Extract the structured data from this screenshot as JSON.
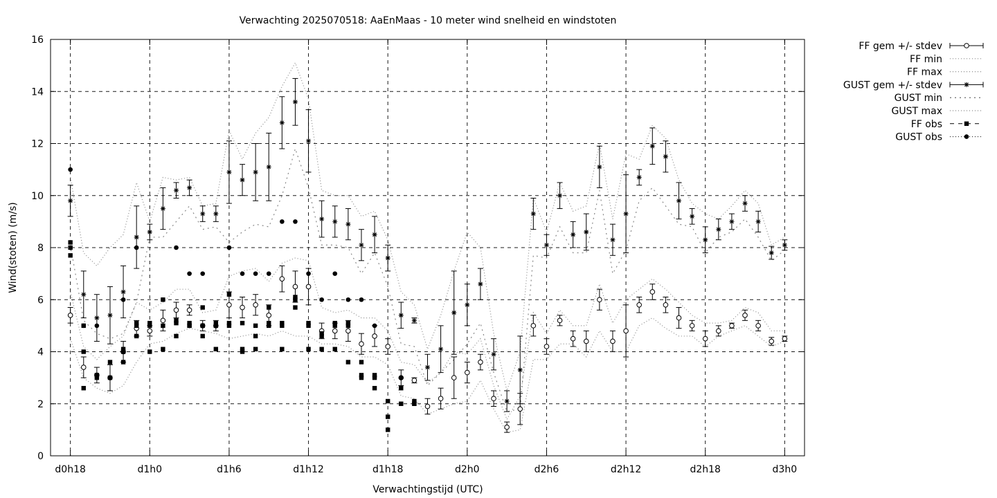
{
  "chart_data": {
    "type": "line",
    "title": "Verwachting 2025070518: AaEnMaas - 10 meter wind snelheid en windstoten",
    "xlabel": "Verwachtingstijd (UTC)",
    "ylabel": "Wind(stoten) (m/s)",
    "ylim": [
      0,
      16
    ],
    "yticks": [
      "0",
      "2",
      "4",
      "6",
      "8",
      "10",
      "12",
      "14",
      "16"
    ],
    "xlim_hours": [
      -1.5,
      55.5
    ],
    "x_unit": "hours since d0h18",
    "xticks": [
      {
        "h": 0,
        "label": "d0h18"
      },
      {
        "h": 6,
        "label": "d1h0"
      },
      {
        "h": 12,
        "label": "d1h6"
      },
      {
        "h": 18,
        "label": "d1h12"
      },
      {
        "h": 24,
        "label": "d1h18"
      },
      {
        "h": 30,
        "label": "d2h0"
      },
      {
        "h": 36,
        "label": "d2h6"
      },
      {
        "h": 42,
        "label": "d2h12"
      },
      {
        "h": 48,
        "label": "d2h18"
      },
      {
        "h": 54,
        "label": "d3h0"
      }
    ],
    "grid": true,
    "legend_position": "outside-right-top",
    "legend": [
      {
        "label": "FF gem +/- stdev",
        "style": "errorbar-open-circle"
      },
      {
        "label": "FF min",
        "style": "dotted"
      },
      {
        "label": "FF max",
        "style": "dotted"
      },
      {
        "label": "GUST gem +/- stdev",
        "style": "errorbar-star"
      },
      {
        "label": "GUST min",
        "style": "dotted-sparse"
      },
      {
        "label": "GUST max",
        "style": "dotted"
      },
      {
        "label": "FF obs",
        "style": "dashed-square"
      },
      {
        "label": "GUST obs",
        "style": "dotted-filled-circle"
      }
    ],
    "ff_mean": {
      "x": [
        0,
        1,
        2,
        3,
        4,
        5,
        6,
        7,
        8,
        9,
        10,
        11,
        12,
        13,
        14,
        15,
        16,
        17,
        18,
        19,
        20,
        21,
        22,
        23,
        24,
        25,
        26,
        27,
        28,
        29,
        30,
        31,
        32,
        33,
        34,
        35,
        36,
        37,
        38,
        39,
        40,
        41,
        42,
        43,
        44,
        45,
        46,
        47,
        48,
        49,
        50,
        51,
        52,
        53,
        54
      ],
      "y": [
        5.4,
        3.4,
        3.1,
        3.0,
        4.0,
        4.9,
        4.8,
        5.2,
        5.6,
        5.6,
        5.0,
        5.0,
        5.8,
        5.7,
        5.8,
        5.4,
        6.8,
        6.5,
        6.5,
        4.8,
        4.8,
        4.8,
        4.3,
        4.6,
        4.2,
        3.0,
        2.9,
        1.9,
        2.2,
        3.0,
        3.2,
        3.6,
        2.2,
        1.1,
        1.8,
        5.0,
        4.2,
        5.2,
        4.5,
        4.4,
        6.0,
        4.4,
        4.8,
        5.8,
        6.3,
        5.8,
        5.3,
        5.0,
        4.5,
        4.8,
        5.0,
        5.4,
        5.0,
        4.4,
        4.5
      ],
      "stdev": [
        0.3,
        0.4,
        0.3,
        0.5,
        0.4,
        0.3,
        0.2,
        0.4,
        0.3,
        0.2,
        0.2,
        0.2,
        0.5,
        0.4,
        0.4,
        0.4,
        0.5,
        0.6,
        0.7,
        0.3,
        0.3,
        0.4,
        0.4,
        0.4,
        0.3,
        0.3,
        0.1,
        0.3,
        0.4,
        0.8,
        0.4,
        0.3,
        0.3,
        0.2,
        0.6,
        0.4,
        0.3,
        0.2,
        0.3,
        0.4,
        0.4,
        0.4,
        1.0,
        0.3,
        0.3,
        0.3,
        0.4,
        0.2,
        0.3,
        0.2,
        0.1,
        0.2,
        0.2,
        0.15,
        0.1
      ]
    },
    "ff_min": {
      "y": [
        4.5,
        3.0,
        2.6,
        2.4,
        2.7,
        3.6,
        4.3,
        4.4,
        4.7,
        4.9,
        4.8,
        4.7,
        4.5,
        4.6,
        4.7,
        4.6,
        4.8,
        4.6,
        4.6,
        4.3,
        4.3,
        4.2,
        3.8,
        3.8,
        3.5,
        2.3,
        2.2,
        1.6,
        1.8,
        2.0,
        2.1,
        2.9,
        1.8,
        0.9,
        1.0,
        3.7,
        3.7,
        4.3,
        4.3,
        3.8,
        4.8,
        4.0,
        4.0,
        5.0,
        5.3,
        4.9,
        4.6,
        4.6,
        4.2,
        4.6,
        4.8,
        5.0,
        4.6,
        4.2,
        4.4
      ]
    },
    "ff_max": {
      "y": [
        6.3,
        4.2,
        3.7,
        4.2,
        4.6,
        5.9,
        5.6,
        5.9,
        6.4,
        6.4,
        5.5,
        5.6,
        6.9,
        7.1,
        7.2,
        6.7,
        7.4,
        7.6,
        7.5,
        5.7,
        5.5,
        5.6,
        5.3,
        5.3,
        4.8,
        3.6,
        3.5,
        2.8,
        3.2,
        4.0,
        3.9,
        4.5,
        2.7,
        1.4,
        2.3,
        5.5,
        4.7,
        5.6,
        5.0,
        5.0,
        6.6,
        5.1,
        6.0,
        6.4,
        6.8,
        6.4,
        5.9,
        5.4,
        5.1,
        5.1,
        5.2,
        5.7,
        5.5,
        4.8,
        4.8
      ]
    },
    "gust_mean": {
      "x": [
        0,
        1,
        2,
        3,
        4,
        5,
        6,
        7,
        8,
        9,
        10,
        11,
        12,
        13,
        14,
        15,
        16,
        17,
        18,
        19,
        20,
        21,
        22,
        23,
        24,
        25,
        26,
        27,
        28,
        29,
        30,
        31,
        32,
        33,
        34,
        35,
        36,
        37,
        38,
        39,
        40,
        41,
        42,
        43,
        44,
        45,
        46,
        47,
        48,
        49,
        50,
        51,
        52,
        53,
        54
      ],
      "y": [
        9.8,
        6.2,
        5.3,
        5.4,
        6.3,
        8.4,
        8.6,
        9.5,
        10.2,
        10.3,
        9.3,
        9.3,
        10.9,
        10.6,
        10.9,
        11.1,
        12.8,
        13.6,
        12.1,
        9.1,
        9.0,
        8.9,
        8.1,
        8.5,
        7.6,
        5.4,
        5.2,
        3.4,
        4.1,
        5.5,
        5.8,
        6.6,
        3.9,
        2.1,
        3.3,
        9.3,
        8.1,
        10.0,
        8.5,
        8.6,
        11.1,
        8.3,
        9.3,
        10.7,
        11.9,
        11.5,
        9.8,
        9.2,
        8.3,
        8.7,
        9.0,
        9.7,
        9.0,
        7.8,
        8.1
      ],
      "stdev": [
        0.6,
        0.9,
        0.9,
        1.1,
        1.0,
        1.2,
        0.3,
        0.8,
        0.3,
        0.3,
        0.3,
        0.3,
        1.2,
        0.6,
        1.1,
        1.3,
        1.0,
        0.9,
        1.2,
        0.7,
        0.6,
        0.6,
        0.6,
        0.7,
        0.5,
        0.5,
        0.1,
        0.5,
        0.9,
        1.6,
        0.8,
        0.6,
        0.6,
        0.4,
        1.3,
        0.6,
        0.4,
        0.5,
        0.5,
        0.7,
        0.8,
        0.6,
        1.5,
        0.3,
        0.7,
        0.6,
        0.7,
        0.3,
        0.5,
        0.4,
        0.3,
        0.3,
        0.4,
        0.25,
        0.2
      ]
    },
    "gust_min": {
      "y": [
        8.1,
        5.2,
        4.7,
        4.5,
        4.7,
        5.9,
        8.4,
        8.4,
        9.0,
        9.6,
        8.7,
        8.8,
        8.2,
        8.6,
        8.9,
        8.8,
        10.0,
        11.8,
        10.3,
        8.1,
        8.1,
        8.0,
        7.0,
        7.8,
        6.5,
        4.3,
        4.2,
        2.7,
        3.2,
        3.7,
        4.3,
        5.1,
        3.2,
        1.7,
        1.8,
        7.7,
        7.6,
        8.8,
        7.8,
        7.8,
        10.2,
        7.0,
        7.9,
        9.8,
        10.3,
        9.6,
        8.9,
        8.8,
        7.8,
        8.4,
        8.6,
        9.1,
        8.4,
        7.5,
        7.9
      ]
    },
    "gust_max": {
      "y": [
        10.7,
        7.8,
        7.3,
        8.0,
        8.5,
        10.5,
        9.0,
        10.7,
        10.6,
        10.7,
        9.6,
        9.7,
        12.5,
        11.4,
        12.4,
        13.0,
        14.2,
        15.1,
        13.7,
        10.2,
        10.0,
        10.0,
        9.2,
        9.4,
        8.3,
        6.3,
        5.8,
        4.1,
        5.4,
        7.1,
        8.6,
        8.0,
        4.7,
        2.5,
        4.0,
        9.9,
        8.6,
        10.5,
        9.4,
        9.6,
        12.0,
        9.1,
        11.6,
        11.4,
        12.7,
        12.2,
        10.6,
        9.7,
        9.3,
        9.1,
        9.6,
        10.2,
        9.7,
        8.1,
        8.4
      ]
    },
    "ff_obs": {
      "x": [
        0,
        0,
        0,
        1,
        1,
        1,
        2,
        2,
        3,
        3,
        4,
        4,
        4,
        5,
        5,
        5,
        6,
        6,
        6,
        7,
        7,
        7,
        8,
        8,
        8,
        9,
        9,
        9,
        10,
        10,
        10,
        11,
        11,
        11,
        12,
        12,
        12,
        13,
        13,
        13,
        14,
        14,
        14,
        15,
        15,
        15,
        16,
        16,
        16,
        17,
        17,
        17,
        18,
        18,
        18,
        19,
        19,
        19,
        20,
        20,
        20,
        21,
        21,
        21,
        22,
        22,
        22,
        23,
        23,
        23,
        24,
        24,
        24,
        25,
        25,
        26,
        26,
        26
      ],
      "y": [
        8.2,
        8.0,
        7.7,
        4.0,
        5.0,
        2.6,
        3.1,
        3.0,
        3.6,
        3.0,
        4.1,
        4.0,
        3.6,
        5.1,
        5.0,
        4.6,
        5.1,
        5.0,
        4.0,
        6.0,
        5.0,
        4.1,
        5.2,
        5.1,
        4.6,
        5.1,
        5.0,
        5.0,
        5.7,
        5.0,
        4.6,
        5.1,
        5.0,
        4.1,
        6.2,
        5.1,
        5.0,
        5.1,
        4.1,
        4.0,
        5.0,
        4.6,
        4.1,
        5.7,
        5.1,
        5.0,
        5.1,
        5.0,
        4.1,
        6.1,
        6.0,
        5.7,
        5.1,
        5.0,
        4.1,
        4.7,
        4.6,
        4.1,
        5.1,
        5.0,
        4.1,
        5.1,
        5.0,
        3.6,
        3.6,
        3.1,
        3.0,
        3.1,
        3.0,
        2.6,
        1.5,
        1.0,
        2.1,
        2.0,
        2.6,
        2.1,
        2.0,
        2.0
      ]
    },
    "gust_obs": {
      "x": [
        0,
        1,
        2,
        4,
        5,
        7,
        8,
        9,
        10,
        12,
        13,
        14,
        15,
        16,
        17,
        18,
        19,
        20,
        21,
        22,
        23,
        25
      ],
      "y": [
        11.0,
        5.0,
        5.0,
        6.0,
        8.0,
        6.0,
        8.0,
        7.0,
        7.0,
        8.0,
        7.0,
        7.0,
        7.0,
        9.0,
        9.0,
        7.0,
        6.0,
        7.0,
        6.0,
        6.0,
        5.0,
        3.0
      ]
    }
  }
}
